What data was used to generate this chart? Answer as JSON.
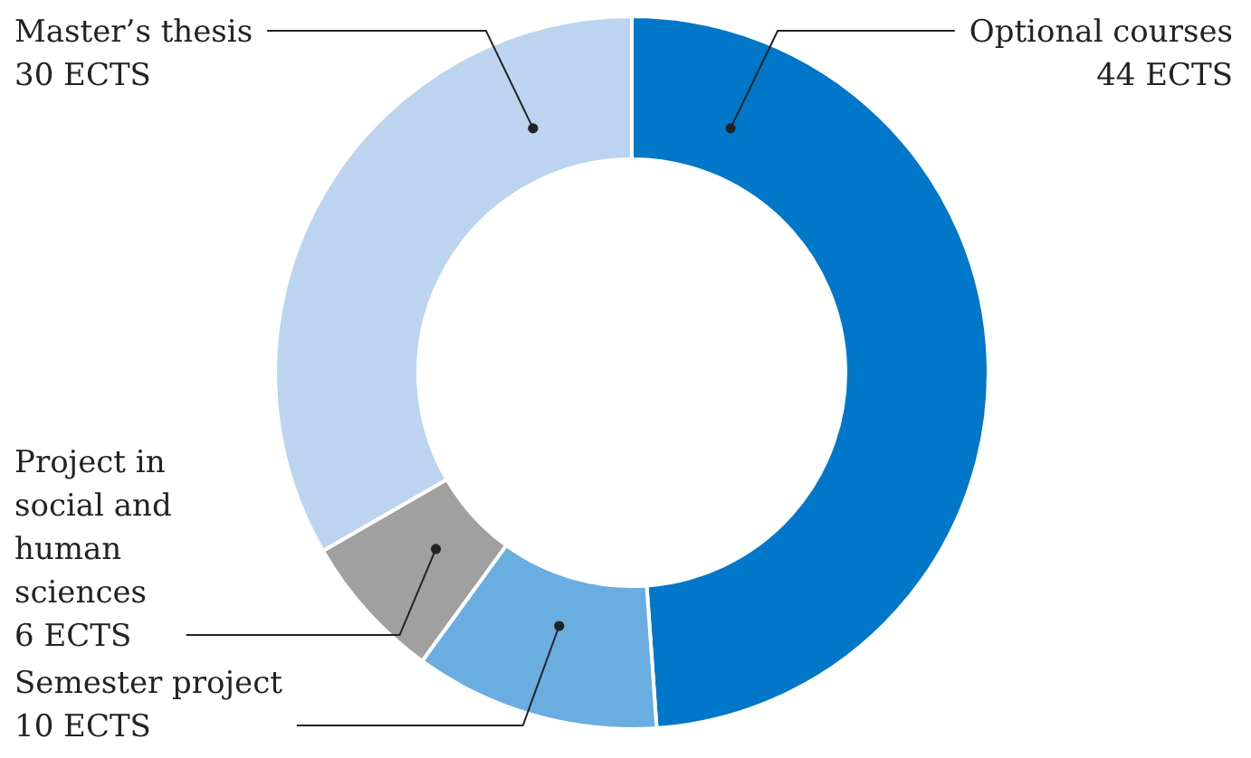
{
  "chart_data": {
    "type": "donut",
    "categories": [
      "Optional courses",
      "Semester project",
      "Project in social and human sciences",
      "Master’s thesis"
    ],
    "values": [
      44,
      10,
      6,
      30
    ],
    "value_labels": [
      "44 ECTS",
      "10 ECTS",
      "6 ECTS",
      "30 ECTS"
    ],
    "colors": [
      "#0077c8",
      "#6aade0",
      "#a0a0a0",
      "#bcd4ef"
    ],
    "legend": false
  }
}
